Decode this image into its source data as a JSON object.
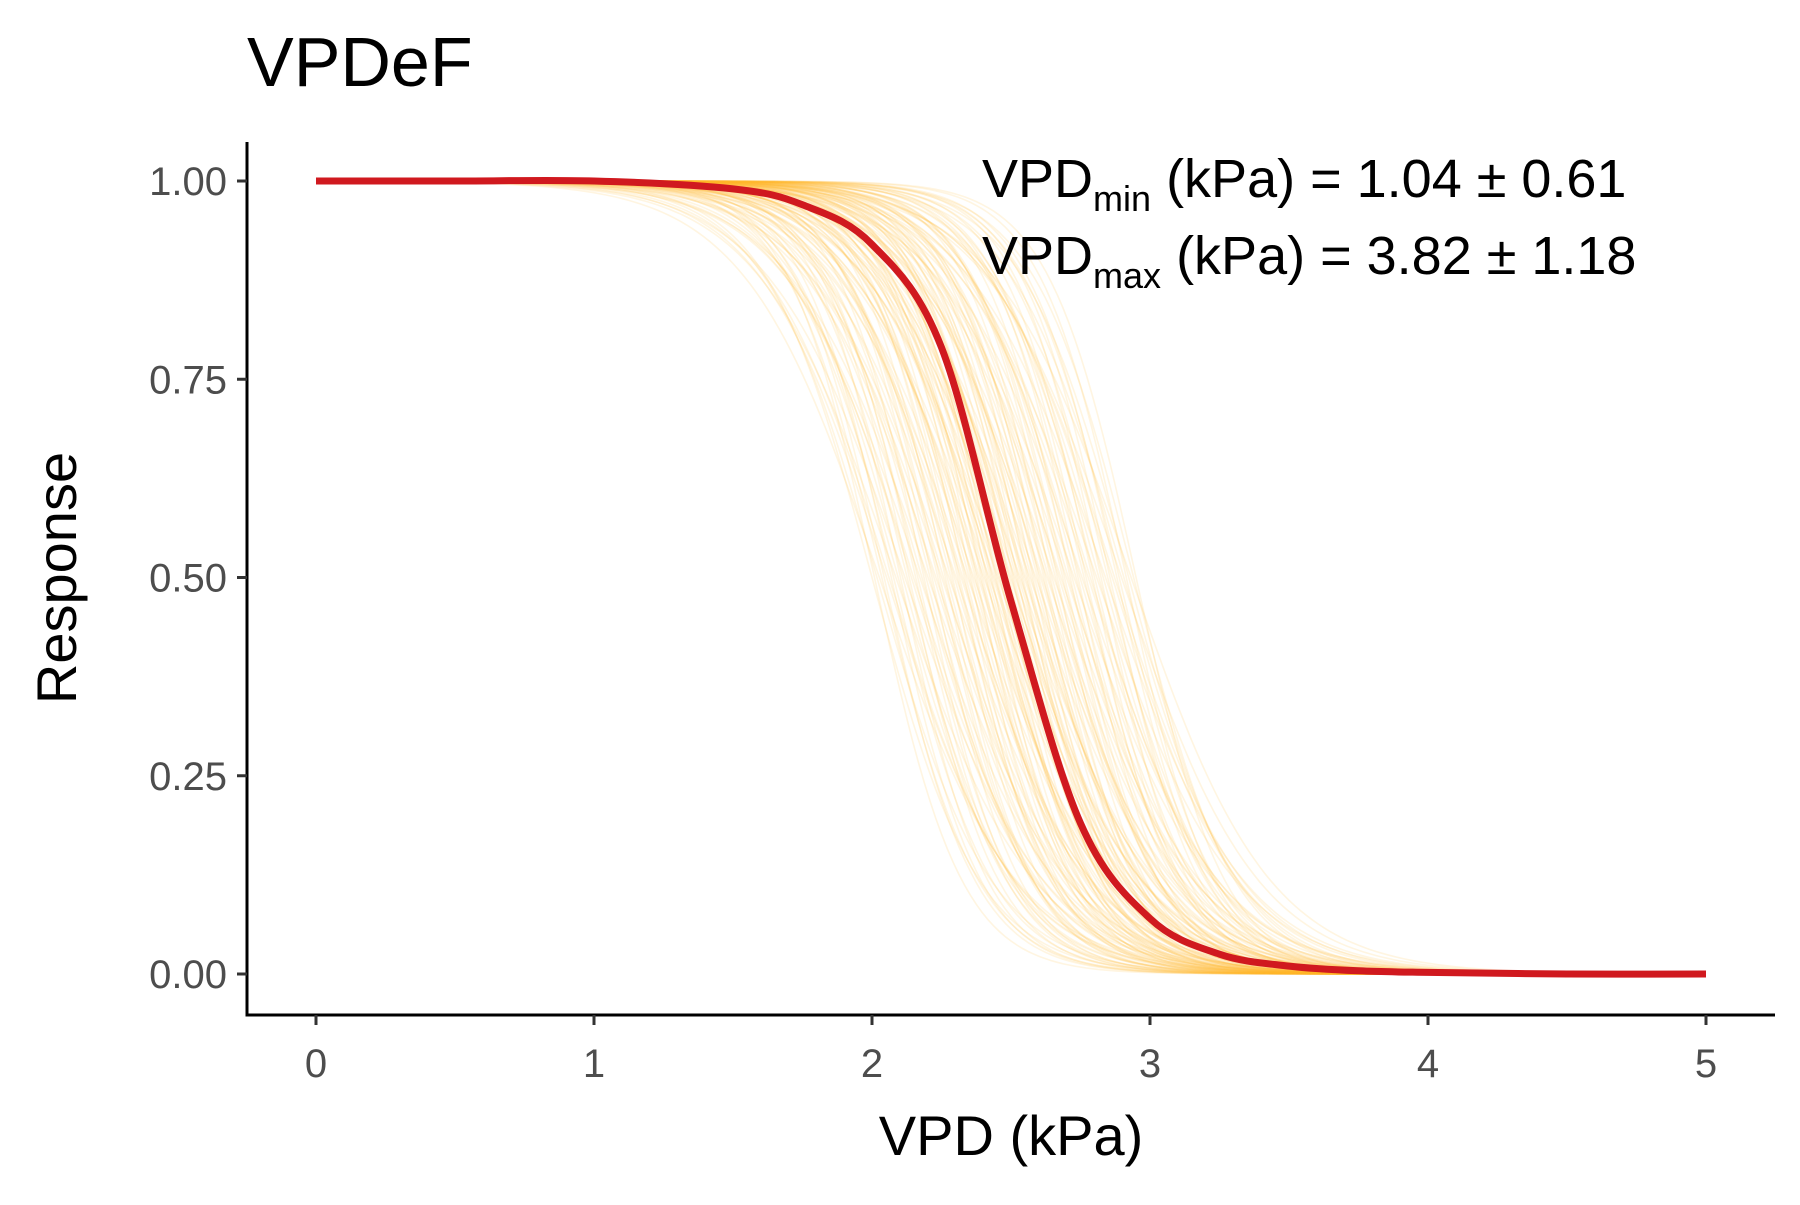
{
  "chart_data": {
    "type": "line",
    "title": "VPDeF",
    "xlabel": "VPD (kPa)",
    "ylabel": "Response",
    "xlim": [
      -0.25,
      5.25
    ],
    "ylim": [
      -0.05,
      1.05
    ],
    "x_ticks": [
      "0",
      "1",
      "2",
      "3",
      "4",
      "5"
    ],
    "y_ticks": [
      "0.00",
      "0.25",
      "0.50",
      "0.75",
      "1.00"
    ],
    "grid": false,
    "legend": "none",
    "series": [
      {
        "role": "mean",
        "color": "#d0191f",
        "x": [
          0,
          0.5,
          1.0,
          1.5,
          1.75,
          2.0,
          2.25,
          2.5,
          2.75,
          3.0,
          3.25,
          3.5,
          3.75,
          4.0,
          4.5,
          5.0
        ],
        "values": [
          1.0,
          1.0,
          1.0,
          0.99,
          0.97,
          0.92,
          0.79,
          0.47,
          0.19,
          0.07,
          0.025,
          0.01,
          0.004,
          0.002,
          0.0,
          0.0
        ]
      }
    ],
    "uncertainty_band": {
      "color": "#fdb92c",
      "description_count": 150,
      "x_at_half": [
        2.0,
        2.95
      ]
    },
    "annotations": [
      {
        "main": "VPD",
        "sub": "min",
        "rest": " (kPa) =  1.04 ± 0.61"
      },
      {
        "main": "VPD",
        "sub": "max",
        "rest": " (kPa) =  3.82 ± 1.18"
      }
    ]
  }
}
